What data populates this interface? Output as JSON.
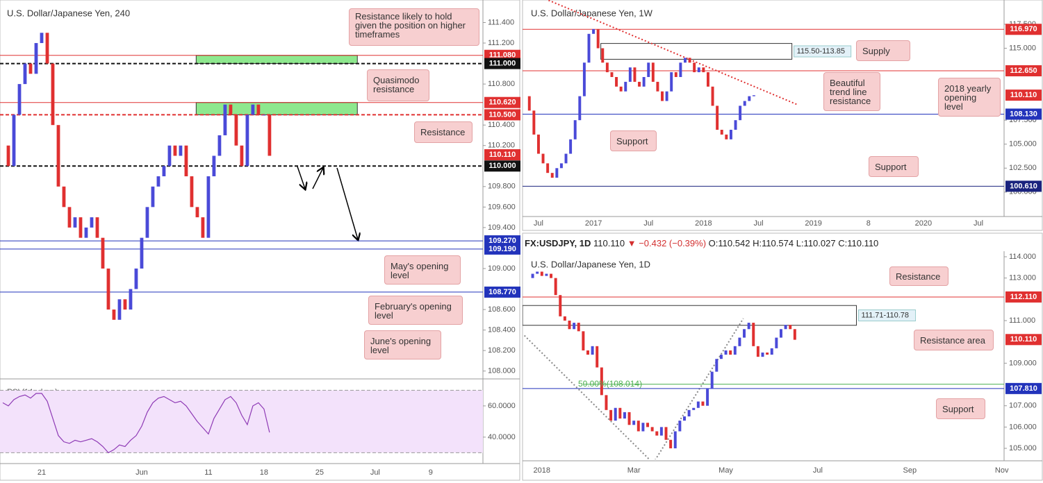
{
  "chart_data": [
    {
      "type": "candlestick",
      "title": "U.S. Dollar/Japanese Yen, 240",
      "up_color": "#4a4ad8",
      "down_color": "#e03030",
      "x": [
        -3.5,
        -3,
        -2.5,
        -2,
        -1.5,
        -1,
        -0.5,
        0,
        0.5,
        1,
        1.5,
        2,
        2.5,
        3,
        3.5,
        4,
        4.5,
        5,
        5.5,
        6,
        6.5,
        7,
        7.5,
        8,
        8.5,
        9,
        9.5,
        10,
        10.5,
        11,
        11.5,
        12,
        12.5,
        13,
        13.5,
        14,
        14.5,
        15,
        15.5,
        16,
        16.5,
        17,
        17.5,
        18,
        18.5,
        19,
        19.5,
        20,
        20.5
      ],
      "values": [
        110.2,
        110.0,
        110.5,
        110.8,
        111.0,
        110.9,
        111.2,
        111.3,
        111.0,
        110.4,
        109.8,
        109.6,
        109.4,
        109.5,
        109.3,
        109.4,
        109.5,
        109.3,
        109.0,
        108.6,
        108.5,
        108.7,
        108.6,
        108.8,
        109.0,
        109.3,
        109.6,
        109.8,
        109.9,
        110.0,
        110.2,
        110.1,
        110.2,
        109.9,
        109.6,
        109.5,
        109.3,
        109.9,
        110.1,
        110.3,
        110.6,
        110.5,
        110.2,
        110.0,
        110.5,
        110.6,
        110.5,
        110.5,
        110.1
      ],
      "xlim": [
        -3.75,
        39.7
      ],
      "ylim": [
        107.93,
        111.62
      ],
      "xticks": [
        {
          "value": 0,
          "label": "21"
        },
        {
          "value": 9,
          "label": "Jun"
        },
        {
          "value": 15,
          "label": "11"
        },
        {
          "value": 20,
          "label": "18"
        },
        {
          "value": 25,
          "label": "25"
        },
        {
          "value": 30,
          "label": "Jul"
        },
        {
          "value": 35,
          "label": "9"
        }
      ],
      "yticks": [
        {
          "value": 111.4,
          "label": "111.400"
        },
        {
          "value": 111.2,
          "label": "111.200"
        },
        {
          "value": 110.8,
          "label": "110.800"
        },
        {
          "value": 110.4,
          "label": "110.400"
        },
        {
          "value": 110.2,
          "label": "110.200"
        },
        {
          "value": 109.8,
          "label": "109.800"
        },
        {
          "value": 109.6,
          "label": "109.600"
        },
        {
          "value": 109.4,
          "label": "109.400"
        },
        {
          "value": 109,
          "label": "109.000"
        },
        {
          "value": 108.6,
          "label": "108.600"
        },
        {
          "value": 108.4,
          "label": "108.400"
        },
        {
          "value": 108.2,
          "label": "108.200"
        },
        {
          "value": 108,
          "label": "108.000"
        }
      ],
      "levels": [
        {
          "value": 111.08,
          "label": "111.080",
          "color": "#e03030",
          "style": "solid"
        },
        {
          "value": 111,
          "label": "111.000",
          "color": "#111111",
          "style": "dashed"
        },
        {
          "value": 110.62,
          "label": "110.620",
          "color": "#e03030",
          "style": "solid"
        },
        {
          "value": 110.5,
          "label": "110.500",
          "color": "#e03030",
          "style": "dashed"
        },
        {
          "value": 110.11,
          "label": "110.110",
          "color": "#e03030",
          "style": "none"
        },
        {
          "value": 110,
          "label": "110.000",
          "color": "#111111",
          "style": "dashed"
        },
        {
          "value": 109.27,
          "label": "109.270",
          "color": "#2233bb",
          "style": "solid"
        },
        {
          "value": 109.19,
          "label": "109.190",
          "color": "#2233bb",
          "style": "solid"
        },
        {
          "value": 108.77,
          "label": "108.770",
          "color": "#2233bb",
          "style": "solid"
        }
      ],
      "zones": [
        {
          "x": [
            13.9,
            28.4
          ],
          "y": [
            111.0,
            111.08
          ],
          "color": "#8ee88e"
        },
        {
          "x": [
            13.9,
            28.4
          ],
          "y": [
            110.5,
            110.62
          ],
          "color": "#8ee88e"
        }
      ],
      "annotations": [
        "Resistance likely to hold given the position on higher timeframes",
        "Quasimodo resistance",
        "Resistance",
        "May's opening level",
        "February's opening level",
        "June's opening level"
      ]
    },
    {
      "type": "candlestick",
      "title": "U.S. Dollar/Japanese Yen, 1W",
      "up_color": "#4a4ad8",
      "down_color": "#e03030",
      "x": [
        4.5,
        5,
        5.5,
        6,
        6.5,
        7,
        7.5,
        8,
        8.5,
        9,
        9.5,
        10,
        10.5,
        11,
        11.5,
        12,
        12.5,
        13,
        13.5,
        14,
        14.5,
        15,
        15.5,
        16,
        16.5,
        17,
        17.5,
        18,
        18.5,
        19,
        19.5,
        20,
        20.5,
        21,
        21.5,
        22,
        22.5,
        23,
        23.5,
        24,
        24.5,
        25,
        25.5,
        26,
        26.5,
        27,
        27.5,
        28,
        28.5,
        29,
        29.5
      ],
      "values": [
        110.0,
        108.5,
        106.0,
        104.0,
        103.0,
        102.0,
        101.5,
        102.5,
        103.0,
        104.0,
        105.5,
        107.5,
        110.0,
        113.5,
        116.5,
        117.0,
        115.0,
        113.5,
        112.5,
        112.0,
        111.0,
        110.5,
        111.5,
        113.0,
        111.5,
        111.0,
        112.0,
        113.5,
        111.5,
        110.5,
        109.5,
        110.5,
        112.5,
        112.0,
        113.5,
        114.0,
        113.5,
        112.5,
        113.0,
        112.5,
        111.0,
        109.0,
        106.5,
        106.0,
        105.5,
        106.5,
        107.5,
        109.0,
        109.5,
        110.0,
        110.1
      ],
      "xlim": [
        4.26,
        56.8
      ],
      "ylim": [
        97.6,
        120.03
      ],
      "xticks": [
        {
          "value": 6,
          "label": "Jul"
        },
        {
          "value": 12,
          "label": "2017"
        },
        {
          "value": 18,
          "label": "Jul"
        },
        {
          "value": 24,
          "label": "2018"
        },
        {
          "value": 30,
          "label": "Jul"
        },
        {
          "value": 36,
          "label": "2019"
        },
        {
          "value": 42,
          "label": "8"
        },
        {
          "value": 48,
          "label": "2020"
        },
        {
          "value": 54,
          "label": "Jul"
        }
      ],
      "yticks": [
        {
          "value": 117.5,
          "label": "117.500"
        },
        {
          "value": 115,
          "label": "115.000"
        },
        {
          "value": 107.5,
          "label": "107.500"
        },
        {
          "value": 105,
          "label": "105.000"
        },
        {
          "value": 102.5,
          "label": "102.500"
        },
        {
          "value": 100,
          "label": "100.000"
        }
      ],
      "levels": [
        {
          "value": 116.97,
          "label": "116.970",
          "color": "#e03030",
          "style": "solid"
        },
        {
          "value": 112.65,
          "label": "112.650",
          "color": "#e03030",
          "style": "solid"
        },
        {
          "value": 110.11,
          "label": "110.110",
          "color": "#e03030",
          "style": "none"
        },
        {
          "value": 108.13,
          "label": "108.130",
          "color": "#2233bb",
          "style": "solid"
        },
        {
          "value": 100.61,
          "label": "100.610",
          "color": "#1a237e",
          "style": "solid"
        }
      ],
      "zones": [
        {
          "x": [
            12.8,
            33.65
          ],
          "y": [
            113.85,
            115.5
          ],
          "color": "#ffffff",
          "label": "115.50-113.85"
        }
      ],
      "trendlines": [
        {
          "points": [
            [
              7.1,
              120.0
            ],
            [
              34.3,
              109.1
            ]
          ],
          "color": "#e03030",
          "style": "dotted"
        }
      ],
      "annotations": [
        "Supply",
        "Beautiful trend line resistance",
        "2018 yearly opening level",
        "Support",
        "Support"
      ]
    },
    {
      "type": "candlestick",
      "title": "U.S. Dollar/Japanese Yen, 1D",
      "up_color": "#4a4ad8",
      "down_color": "#e03030",
      "x": [
        -0.3,
        -0.2,
        -0.1,
        0,
        0.1,
        0.2,
        0.3,
        0.4,
        0.5,
        0.6,
        0.7,
        0.8,
        0.9,
        1.0,
        1.1,
        1.2,
        1.3,
        1.4,
        1.5,
        1.6,
        1.7,
        1.8,
        1.9,
        2.0,
        2.1,
        2.2,
        2.3,
        2.4,
        2.5,
        2.6,
        2.7,
        2.8,
        2.9,
        3.0,
        3.1,
        3.2,
        3.3,
        3.4,
        3.5,
        3.6,
        3.7,
        3.8,
        3.9,
        4.0,
        4.1,
        4.2,
        4.3,
        4.4,
        4.5,
        4.6,
        4.7,
        4.8,
        4.9,
        5.0,
        5.1,
        5.2,
        5.3,
        5.4,
        5.5
      ],
      "values": [
        113.0,
        113.2,
        113.3,
        113.1,
        113.2,
        113.0,
        112.2,
        111.2,
        111.0,
        110.6,
        110.9,
        110.5,
        109.6,
        109.4,
        109.8,
        108.8,
        107.5,
        106.8,
        106.3,
        106.9,
        106.4,
        106.7,
        106.1,
        106.3,
        105.8,
        106.2,
        106.0,
        105.8,
        105.6,
        106.0,
        105.4,
        105.0,
        105.8,
        106.3,
        106.5,
        106.8,
        106.9,
        107.2,
        107.0,
        107.8,
        108.6,
        109.2,
        109.4,
        109.6,
        109.4,
        109.8,
        110.2,
        110.6,
        110.9,
        109.8,
        109.3,
        109.5,
        109.4,
        109.7,
        110.2,
        110.6,
        110.8,
        110.6,
        110.1
      ],
      "xlim": [
        -0.42,
        10.05
      ],
      "ylim": [
        104.48,
        114.26
      ],
      "xticks": [
        {
          "value": 0,
          "label": "2018"
        },
        {
          "value": 2,
          "label": "Mar"
        },
        {
          "value": 4,
          "label": "May"
        },
        {
          "value": 6,
          "label": "Jul"
        },
        {
          "value": 8,
          "label": "Sep"
        },
        {
          "value": 10,
          "label": "Nov"
        }
      ],
      "yticks": [
        {
          "value": 114,
          "label": "114.000"
        },
        {
          "value": 113,
          "label": "113.000"
        },
        {
          "value": 111,
          "label": "111.000"
        },
        {
          "value": 109,
          "label": "109.000"
        },
        {
          "value": 107,
          "label": "107.000"
        },
        {
          "value": 106,
          "label": "106.000"
        },
        {
          "value": 105,
          "label": "105.000"
        }
      ],
      "levels": [
        {
          "value": 112.11,
          "label": "112.110",
          "color": "#e03030",
          "style": "solid"
        },
        {
          "value": 110.11,
          "label": "110.110",
          "color": "#e03030",
          "style": "none"
        },
        {
          "value": 107.81,
          "label": "107.810",
          "color": "#2233bb",
          "style": "solid"
        }
      ],
      "fib": {
        "value": 108.014,
        "label": "50.00%(108.014)",
        "color": "#4caf50"
      },
      "zones": [
        {
          "x": [
            -0.42,
            6.84
          ],
          "y": [
            110.78,
            111.71
          ],
          "color": "#ffffff",
          "label": "111.71-110.78"
        }
      ],
      "trendlines": [
        {
          "points": [
            [
              -0.38,
              110.3
            ],
            [
              2.42,
              104.3
            ]
          ],
          "color": "#888888",
          "style": "dotted"
        },
        {
          "points": [
            [
              2.42,
              104.3
            ],
            [
              4.38,
              111.1
            ]
          ],
          "color": "#888888",
          "style": "dotted"
        }
      ],
      "annotations": [
        "Resistance",
        "Resistance area",
        "Support"
      ],
      "info": {
        "symbol": "FX:USDJPY, 1D",
        "last": "110.110",
        "arrow": "▼",
        "change": "−0.432 (−0.39%)",
        "open": "O:110.542",
        "high": "H:110.574",
        "low": "L:110.027",
        "close": "C:110.110"
      }
    },
    {
      "type": "line",
      "title": "RSI (14, close)",
      "color": "#8e3ab5",
      "band": [
        30,
        70
      ],
      "band_color": "#f3e2fb",
      "x": [
        -3.5,
        -3,
        -2.5,
        -2,
        -1.5,
        -1,
        -0.5,
        0,
        0.5,
        1,
        1.5,
        2,
        2.5,
        3,
        3.5,
        4,
        4.5,
        5,
        5.5,
        6,
        6.5,
        7,
        7.5,
        8,
        8.5,
        9,
        9.5,
        10,
        10.5,
        11,
        11.5,
        12,
        12.5,
        13,
        13.5,
        14,
        14.5,
        15,
        15.5,
        16,
        16.5,
        17,
        17.5,
        18,
        18.5,
        19,
        19.5,
        20,
        20.5
      ],
      "values": [
        62,
        60,
        64,
        66,
        67,
        65,
        68,
        68,
        63,
        52,
        41,
        37,
        36,
        38,
        37,
        38,
        39,
        37,
        34,
        30,
        32,
        35,
        34,
        38,
        41,
        47,
        56,
        62,
        65,
        66,
        64,
        62,
        63,
        60,
        55,
        50,
        46,
        42,
        52,
        58,
        64,
        66,
        62,
        54,
        48,
        60,
        62,
        58,
        43
      ],
      "xlim": [
        -3.75,
        39.7
      ],
      "ylim": [
        24.4,
        76.4
      ],
      "yticks": [
        {
          "value": 60,
          "label": "60.0000"
        },
        {
          "value": 40,
          "label": "40.0000"
        }
      ]
    }
  ]
}
